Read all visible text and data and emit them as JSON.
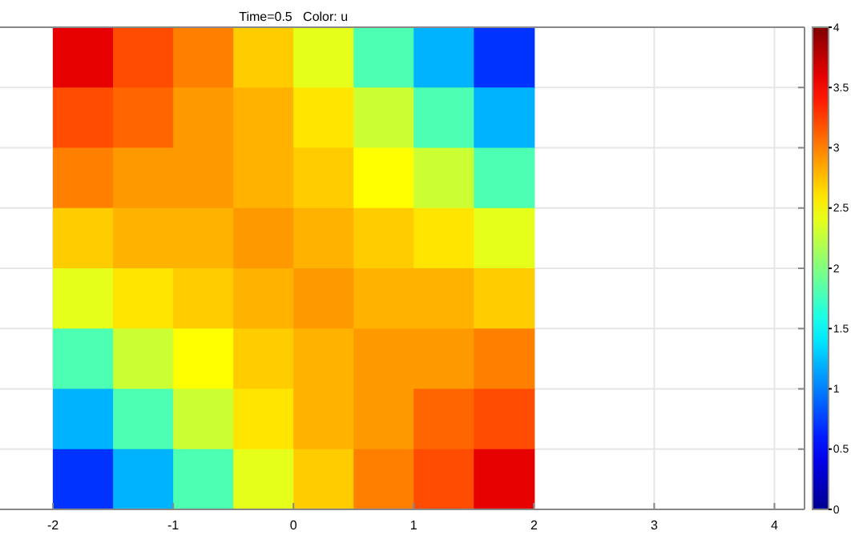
{
  "chart_data": {
    "type": "heatmap",
    "title": "Time=0.5   Color: u",
    "x": [
      -1.75,
      -1.25,
      -0.75,
      -0.25,
      0.25,
      0.75,
      1.25,
      1.75
    ],
    "y_categories": [
      null,
      null,
      null,
      null,
      null,
      null,
      null,
      null
    ],
    "cells": [
      [
        3.6,
        3.2,
        3.0,
        2.7,
        2.4,
        1.8,
        1.2,
        0.7
      ],
      [
        3.2,
        3.1,
        2.9,
        2.8,
        2.6,
        2.3,
        1.8,
        1.2
      ],
      [
        3.0,
        2.9,
        2.9,
        2.8,
        2.7,
        2.5,
        2.3,
        1.8
      ],
      [
        2.7,
        2.8,
        2.8,
        2.9,
        2.8,
        2.7,
        2.6,
        2.4
      ],
      [
        2.4,
        2.6,
        2.7,
        2.8,
        2.9,
        2.8,
        2.8,
        2.7
      ],
      [
        1.8,
        2.3,
        2.5,
        2.7,
        2.8,
        2.9,
        2.9,
        3.0
      ],
      [
        1.2,
        1.8,
        2.3,
        2.6,
        2.8,
        2.9,
        3.1,
        3.2
      ],
      [
        0.7,
        1.2,
        1.8,
        2.4,
        2.7,
        3.0,
        3.2,
        3.6
      ]
    ],
    "xlim": [
      -2.44,
      4.25
    ],
    "xticks": [
      -2,
      -1,
      0,
      1,
      2,
      3,
      4
    ],
    "tick_labels": "x",
    "grid": true,
    "clim": [
      0,
      4
    ],
    "cticks": [
      0,
      0.5,
      1,
      1.5,
      2,
      2.5,
      3,
      3.5,
      4
    ]
  }
}
